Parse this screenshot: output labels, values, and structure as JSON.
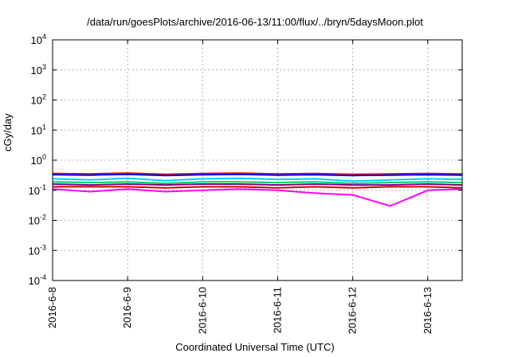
{
  "chart_data": {
    "type": "line",
    "title": "/data/run/goesPlots/archive/2016-06-13/11:00/flux/../bryn/5daysMoon.plot",
    "xlabel": "Coordinated Universal Time (UTC)",
    "ylabel": "cGy/day",
    "yscale": "log",
    "ylim": [
      0.0001,
      10000
    ],
    "y_ticks": [
      {
        "value": 0.0001,
        "base": "10",
        "exp": "-4"
      },
      {
        "value": 0.001,
        "base": "10",
        "exp": "-3"
      },
      {
        "value": 0.01,
        "base": "10",
        "exp": "-2"
      },
      {
        "value": 0.1,
        "base": "10",
        "exp": "-1"
      },
      {
        "value": 1,
        "base": "10",
        "exp": "0"
      },
      {
        "value": 10,
        "base": "10",
        "exp": "1"
      },
      {
        "value": 100,
        "base": "10",
        "exp": "2"
      },
      {
        "value": 1000,
        "base": "10",
        "exp": "3"
      },
      {
        "value": 10000,
        "base": "10",
        "exp": "4"
      }
    ],
    "xlim": [
      "2016-06-08 00:00",
      "2016-06-13 11:00"
    ],
    "x_ticks": [
      {
        "value": "2016-06-08 00:00",
        "label": "2016-6-8"
      },
      {
        "value": "2016-06-09 00:00",
        "label": "2016-6-9"
      },
      {
        "value": "2016-06-10 00:00",
        "label": "2016-6-10"
      },
      {
        "value": "2016-06-11 00:00",
        "label": "2016-6-11"
      },
      {
        "value": "2016-06-12 00:00",
        "label": "2016-6-12"
      },
      {
        "value": "2016-06-13 00:00",
        "label": "2016-6-13"
      }
    ],
    "grid": true,
    "legend": "none",
    "x": [
      "2016-06-08 00:00",
      "2016-06-08 12:00",
      "2016-06-09 00:00",
      "2016-06-09 12:00",
      "2016-06-10 00:00",
      "2016-06-10 12:00",
      "2016-06-11 00:00",
      "2016-06-11 12:00",
      "2016-06-12 00:00",
      "2016-06-12 12:00",
      "2016-06-13 00:00",
      "2016-06-13 11:00"
    ],
    "series": [
      {
        "color": "#ff0000",
        "values": [
          0.36,
          0.35,
          0.37,
          0.34,
          0.36,
          0.37,
          0.35,
          0.36,
          0.34,
          0.35,
          0.36,
          0.35
        ]
      },
      {
        "color": "#0000ff",
        "values": [
          0.33,
          0.32,
          0.34,
          0.31,
          0.33,
          0.34,
          0.32,
          0.33,
          0.31,
          0.32,
          0.33,
          0.32
        ]
      },
      {
        "color": "#00ccff",
        "values": [
          0.24,
          0.22,
          0.25,
          0.21,
          0.24,
          0.25,
          0.23,
          0.24,
          0.2,
          0.22,
          0.24,
          0.23
        ]
      },
      {
        "color": "#00cc66",
        "values": [
          0.19,
          0.18,
          0.19,
          0.17,
          0.19,
          0.19,
          0.18,
          0.19,
          0.17,
          0.18,
          0.19,
          0.18
        ]
      },
      {
        "color": "#800080",
        "values": [
          0.16,
          0.15,
          0.16,
          0.15,
          0.16,
          0.16,
          0.15,
          0.16,
          0.15,
          0.15,
          0.16,
          0.15
        ]
      },
      {
        "color": "#cc0000",
        "values": [
          0.13,
          0.13,
          0.13,
          0.12,
          0.13,
          0.13,
          0.12,
          0.13,
          0.12,
          0.13,
          0.13,
          0.12
        ]
      },
      {
        "color": "#ff00ff",
        "values": [
          0.11,
          0.09,
          0.11,
          0.09,
          0.1,
          0.11,
          0.1,
          0.08,
          0.07,
          0.03,
          0.1,
          0.11
        ]
      }
    ]
  }
}
